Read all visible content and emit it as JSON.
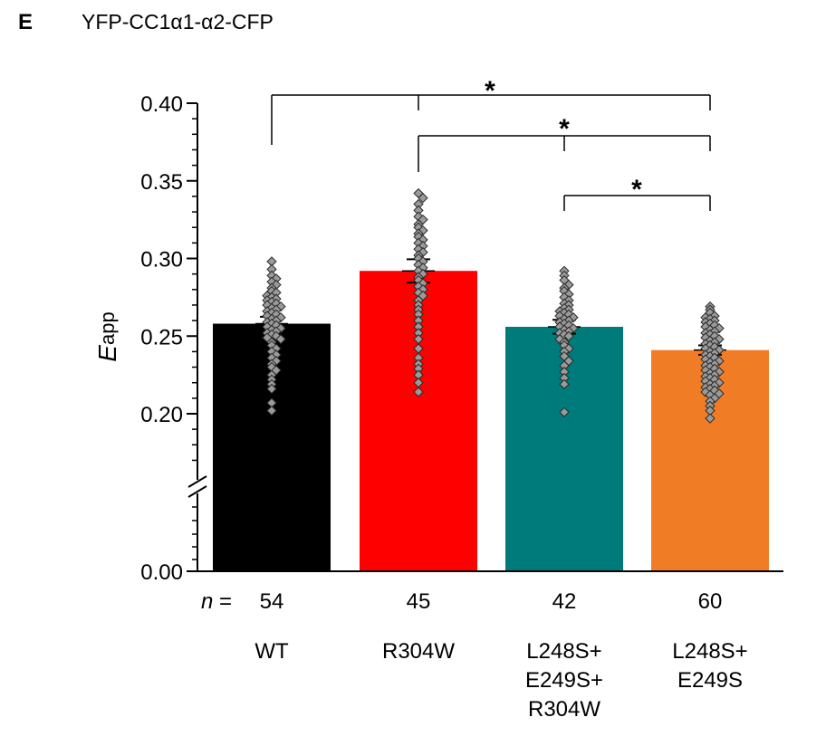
{
  "panel_label": "E",
  "title": "YFP-CC1α1-α2-CFP",
  "chart_data": {
    "type": "bar",
    "ylabel": "E",
    "ylabel_subscript": "app",
    "yaxis": {
      "broken": true,
      "lower_segment": [
        0.0,
        0.0
      ],
      "upper_segment": [
        0.16,
        0.4
      ],
      "ticks": [
        "0.00",
        "0.20",
        "0.25",
        "0.30",
        "0.35",
        "0.40"
      ]
    },
    "n_prefix": "n =",
    "categories": [
      {
        "label_lines": [
          "WT"
        ],
        "n": "54",
        "mean": 0.258,
        "sem": 0.0045,
        "color": "#000000",
        "points": [
          0.298,
          0.293,
          0.289,
          0.287,
          0.285,
          0.283,
          0.281,
          0.279,
          0.278,
          0.276,
          0.275,
          0.274,
          0.273,
          0.272,
          0.271,
          0.27,
          0.269,
          0.268,
          0.267,
          0.266,
          0.265,
          0.264,
          0.263,
          0.262,
          0.261,
          0.26,
          0.259,
          0.258,
          0.257,
          0.256,
          0.255,
          0.254,
          0.253,
          0.252,
          0.251,
          0.25,
          0.249,
          0.248,
          0.246,
          0.244,
          0.242,
          0.24,
          0.238,
          0.236,
          0.234,
          0.232,
          0.23,
          0.228,
          0.225,
          0.222,
          0.219,
          0.216,
          0.207,
          0.202
        ]
      },
      {
        "label_lines": [
          "R304W"
        ],
        "n": "45",
        "mean": 0.292,
        "sem": 0.0075,
        "color": "#ff0000",
        "points": [
          0.342,
          0.339,
          0.335,
          0.331,
          0.327,
          0.325,
          0.322,
          0.32,
          0.318,
          0.316,
          0.314,
          0.312,
          0.31,
          0.308,
          0.306,
          0.304,
          0.302,
          0.3,
          0.298,
          0.296,
          0.294,
          0.292,
          0.29,
          0.288,
          0.286,
          0.284,
          0.282,
          0.28,
          0.278,
          0.276,
          0.273,
          0.27,
          0.267,
          0.264,
          0.26,
          0.256,
          0.252,
          0.248,
          0.242,
          0.236,
          0.232,
          0.229,
          0.225,
          0.22,
          0.214
        ]
      },
      {
        "label_lines": [
          "L248S+",
          "E249S+",
          "R304W"
        ],
        "n": "42",
        "mean": 0.256,
        "sem": 0.0045,
        "color": "#007b7b",
        "points": [
          0.292,
          0.289,
          0.286,
          0.283,
          0.281,
          0.279,
          0.277,
          0.275,
          0.273,
          0.271,
          0.27,
          0.268,
          0.267,
          0.266,
          0.265,
          0.264,
          0.263,
          0.262,
          0.261,
          0.26,
          0.259,
          0.258,
          0.257,
          0.256,
          0.255,
          0.254,
          0.253,
          0.252,
          0.251,
          0.25,
          0.248,
          0.246,
          0.244,
          0.242,
          0.24,
          0.237,
          0.234,
          0.231,
          0.227,
          0.223,
          0.219,
          0.201
        ]
      },
      {
        "label_lines": [
          "L248S+",
          "E249S"
        ],
        "n": "60",
        "mean": 0.241,
        "sem": 0.003,
        "color": "#f07d26",
        "points": [
          0.269,
          0.267,
          0.265,
          0.263,
          0.262,
          0.261,
          0.26,
          0.259,
          0.258,
          0.257,
          0.256,
          0.255,
          0.254,
          0.253,
          0.252,
          0.251,
          0.25,
          0.249,
          0.248,
          0.247,
          0.246,
          0.245,
          0.244,
          0.243,
          0.242,
          0.241,
          0.24,
          0.239,
          0.238,
          0.237,
          0.236,
          0.235,
          0.234,
          0.233,
          0.232,
          0.231,
          0.23,
          0.229,
          0.228,
          0.227,
          0.226,
          0.225,
          0.224,
          0.223,
          0.222,
          0.221,
          0.22,
          0.219,
          0.218,
          0.217,
          0.216,
          0.215,
          0.214,
          0.213,
          0.212,
          0.21,
          0.208,
          0.205,
          0.202,
          0.197
        ]
      }
    ],
    "significance": [
      {
        "from": 0,
        "to": 3,
        "label": "*"
      },
      {
        "from": 1,
        "to": 3,
        "label": "*"
      },
      {
        "from": 2,
        "to": 3,
        "label": "*"
      }
    ]
  }
}
